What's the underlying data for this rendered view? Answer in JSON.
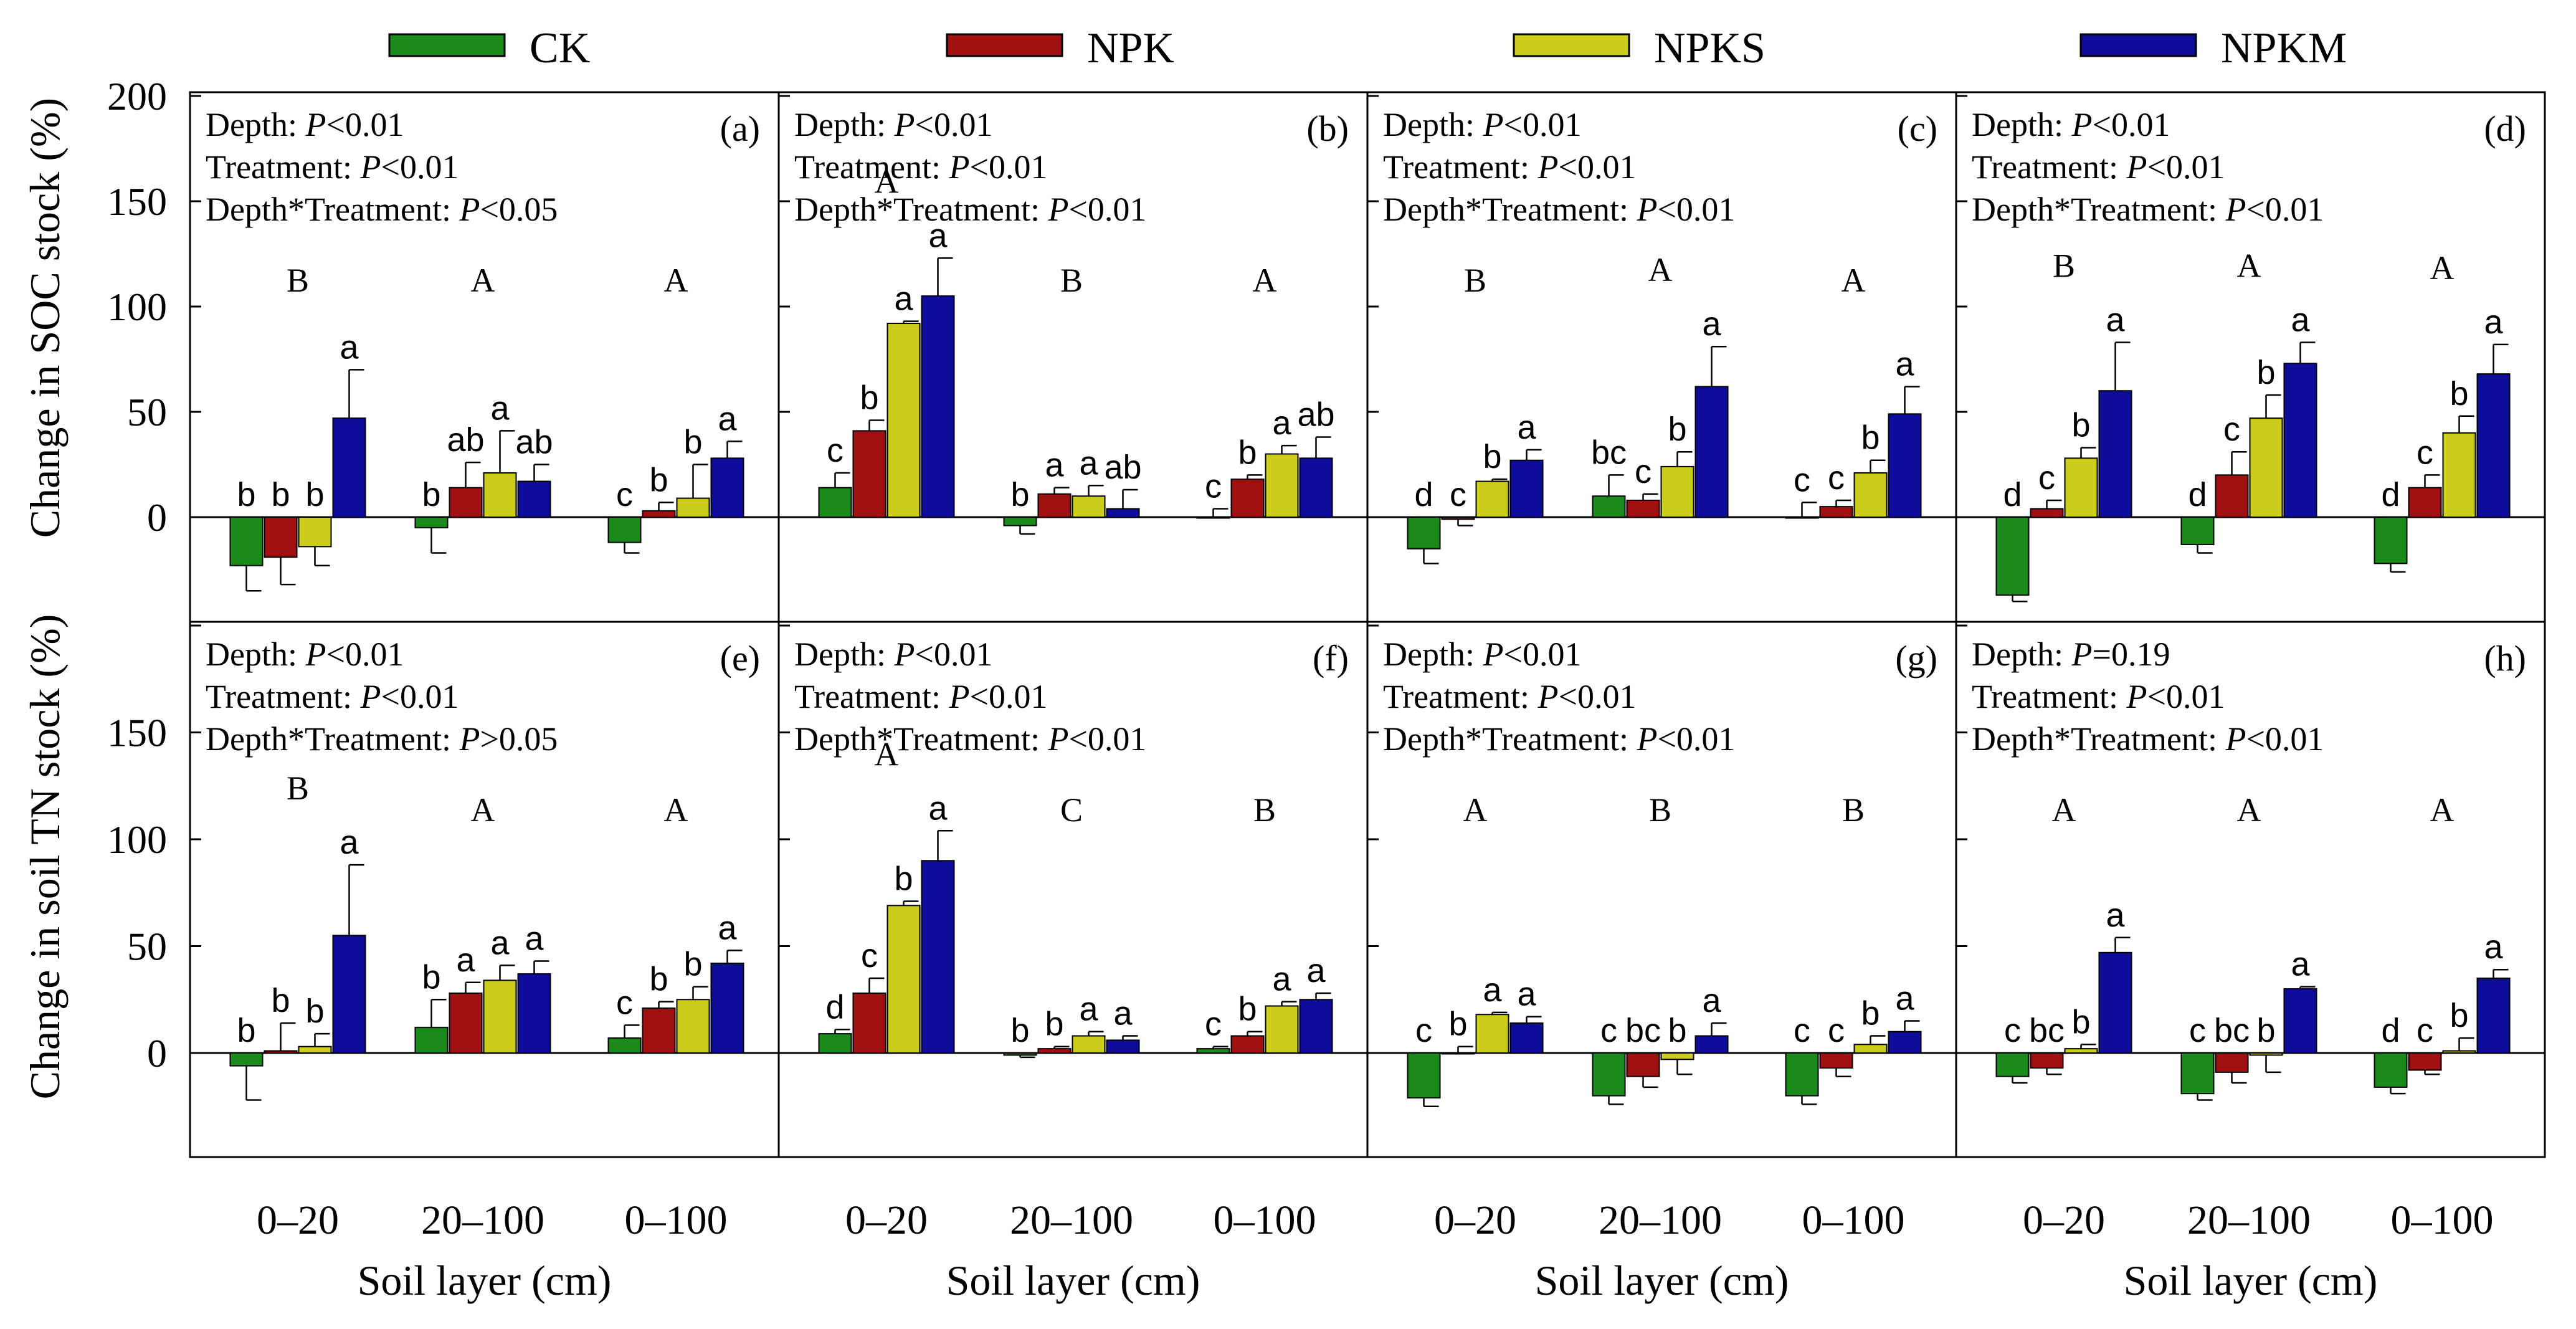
{
  "colors": {
    "CK": "#1a8a1a",
    "NPK": "#a01010",
    "NPKS": "#cccc1a",
    "NPKM": "#0d0d99"
  },
  "legend": [
    "CK",
    "NPK",
    "NPKS",
    "NPKM"
  ],
  "axes": {
    "soc_ylabel": "Change in SOC stock (%)",
    "tn_ylabel": "Change in soil TN stock (%)",
    "xlabel": "Soil layer (cm)",
    "categories": [
      "0–20",
      "20–100",
      "0–100"
    ],
    "soc_yticks": [
      "0",
      "50",
      "100",
      "150",
      "200"
    ],
    "tn_yticks": [
      "0",
      "50",
      "100",
      "150"
    ]
  },
  "chart_data": [
    {
      "type": "bar",
      "panel": "(a)",
      "row": "SOC",
      "categories": [
        "0–20",
        "20–100",
        "0–100"
      ],
      "stats": [
        "Depth: P<0.01",
        "Treatment: P<0.01",
        "Depth*Treatment: P<0.05"
      ],
      "group_letters": [
        "B",
        "A",
        "A"
      ],
      "series": [
        {
          "name": "CK",
          "values": [
            -23,
            -5,
            -12
          ],
          "errors": [
            12,
            12,
            5
          ],
          "letters": [
            "b",
            "b",
            "c"
          ]
        },
        {
          "name": "NPK",
          "values": [
            -19,
            14,
            3
          ],
          "errors": [
            13,
            12,
            4
          ],
          "letters": [
            "b",
            "ab",
            "b"
          ]
        },
        {
          "name": "NPKS",
          "values": [
            -14,
            21,
            9
          ],
          "errors": [
            9,
            20,
            16
          ],
          "letters": [
            "b",
            "a",
            "b"
          ]
        },
        {
          "name": "NPKM",
          "values": [
            47,
            17,
            28
          ],
          "errors": [
            23,
            8,
            8
          ],
          "letters": [
            "a",
            "ab",
            "a"
          ]
        }
      ]
    },
    {
      "type": "bar",
      "panel": "(b)",
      "row": "SOC",
      "categories": [
        "0–20",
        "20–100",
        "0–100"
      ],
      "stats": [
        "Depth: P<0.01",
        "Treatment: P<0.01",
        "Depth*Treatment: P<0.01"
      ],
      "group_letters": [
        "A",
        "B",
        "A"
      ],
      "series": [
        {
          "name": "CK",
          "values": [
            14,
            -4,
            0
          ],
          "errors": [
            7,
            4,
            4
          ],
          "letters": [
            "c",
            "b",
            "c"
          ]
        },
        {
          "name": "NPK",
          "values": [
            41,
            11,
            18
          ],
          "errors": [
            5,
            3,
            2
          ],
          "letters": [
            "b",
            "a",
            "b"
          ]
        },
        {
          "name": "NPKS",
          "values": [
            92,
            10,
            30
          ],
          "errors": [
            1,
            5,
            4
          ],
          "letters": [
            "a",
            "a",
            "a"
          ]
        },
        {
          "name": "NPKM",
          "values": [
            105,
            4,
            28
          ],
          "errors": [
            18,
            9,
            10
          ],
          "letters": [
            "a",
            "ab",
            "ab"
          ]
        }
      ]
    },
    {
      "type": "bar",
      "panel": "(c)",
      "row": "SOC",
      "categories": [
        "0–20",
        "20–100",
        "0–100"
      ],
      "stats": [
        "Depth: P<0.01",
        "Treatment: P<0.01",
        "Depth*Treatment: P<0.01"
      ],
      "group_letters": [
        "B",
        "A",
        "A"
      ],
      "series": [
        {
          "name": "CK",
          "values": [
            -15,
            10,
            0
          ],
          "errors": [
            7,
            10,
            7
          ],
          "letters": [
            "d",
            "bc",
            "c"
          ]
        },
        {
          "name": "NPK",
          "values": [
            -1,
            8,
            5
          ],
          "errors": [
            3,
            3,
            3
          ],
          "letters": [
            "c",
            "c",
            "c"
          ]
        },
        {
          "name": "NPKS",
          "values": [
            17,
            24,
            21
          ],
          "errors": [
            1,
            7,
            6
          ],
          "letters": [
            "b",
            "b",
            "b"
          ]
        },
        {
          "name": "NPKM",
          "values": [
            27,
            62,
            49
          ],
          "errors": [
            5,
            19,
            13
          ],
          "letters": [
            "a",
            "a",
            "a"
          ]
        }
      ]
    },
    {
      "type": "bar",
      "panel": "(d)",
      "row": "SOC",
      "categories": [
        "0–20",
        "20–100",
        "0–100"
      ],
      "stats": [
        "Depth: P<0.01",
        "Treatment: P<0.01",
        "Depth*Treatment: P<0.01"
      ],
      "group_letters": [
        "B",
        "A",
        "A"
      ],
      "series": [
        {
          "name": "CK",
          "values": [
            -37,
            -13,
            -22
          ],
          "errors": [
            3,
            4,
            4
          ],
          "letters": [
            "d",
            "d",
            "d"
          ]
        },
        {
          "name": "NPK",
          "values": [
            4,
            20,
            14
          ],
          "errors": [
            4,
            11,
            6
          ],
          "letters": [
            "c",
            "c",
            "c"
          ]
        },
        {
          "name": "NPKS",
          "values": [
            28,
            47,
            40
          ],
          "errors": [
            5,
            11,
            8
          ],
          "letters": [
            "b",
            "b",
            "b"
          ]
        },
        {
          "name": "NPKM",
          "values": [
            60,
            73,
            68
          ],
          "errors": [
            23,
            10,
            14
          ],
          "letters": [
            "a",
            "a",
            "a"
          ]
        }
      ]
    },
    {
      "type": "bar",
      "panel": "(e)",
      "row": "TN",
      "categories": [
        "0–20",
        "20–100",
        "0–100"
      ],
      "stats": [
        "Depth: P<0.01",
        "Treatment: P<0.01",
        "Depth*Treatment: P>0.05"
      ],
      "group_letters": [
        "B",
        "A",
        "A"
      ],
      "series": [
        {
          "name": "CK",
          "values": [
            -6,
            12,
            7
          ],
          "errors": [
            16,
            13,
            6
          ],
          "letters": [
            "b",
            "b",
            "c"
          ]
        },
        {
          "name": "NPK",
          "values": [
            1,
            28,
            21
          ],
          "errors": [
            13,
            5,
            3
          ],
          "letters": [
            "b",
            "a",
            "b"
          ]
        },
        {
          "name": "NPKS",
          "values": [
            3,
            34,
            25
          ],
          "errors": [
            6,
            7,
            6
          ],
          "letters": [
            "b",
            "a",
            "b"
          ]
        },
        {
          "name": "NPKM",
          "values": [
            55,
            37,
            42
          ],
          "errors": [
            33,
            6,
            6
          ],
          "letters": [
            "a",
            "a",
            "a"
          ]
        }
      ]
    },
    {
      "type": "bar",
      "panel": "(f)",
      "row": "TN",
      "categories": [
        "0–20",
        "20–100",
        "0–100"
      ],
      "stats": [
        "Depth: P<0.01",
        "Treatment: P<0.01",
        "Depth*Treatment: P<0.01"
      ],
      "group_letters": [
        "A",
        "C",
        "B"
      ],
      "series": [
        {
          "name": "CK",
          "values": [
            9,
            -1,
            2
          ],
          "errors": [
            2,
            1,
            1
          ],
          "letters": [
            "d",
            "b",
            "c"
          ]
        },
        {
          "name": "NPK",
          "values": [
            28,
            2,
            8
          ],
          "errors": [
            7,
            1,
            2
          ],
          "letters": [
            "c",
            "b",
            "b"
          ]
        },
        {
          "name": "NPKS",
          "values": [
            69,
            8,
            22
          ],
          "errors": [
            2,
            2,
            2
          ],
          "letters": [
            "b",
            "a",
            "a"
          ]
        },
        {
          "name": "NPKM",
          "values": [
            90,
            6,
            25
          ],
          "errors": [
            14,
            2,
            3
          ],
          "letters": [
            "a",
            "a",
            "a"
          ]
        }
      ]
    },
    {
      "type": "bar",
      "panel": "(g)",
      "row": "TN",
      "categories": [
        "0–20",
        "20–100",
        "0–100"
      ],
      "stats": [
        "Depth: P<0.01",
        "Treatment: P<0.01",
        "Depth*Treatment: P<0.01"
      ],
      "group_letters": [
        "A",
        "B",
        "B"
      ],
      "series": [
        {
          "name": "CK",
          "values": [
            -21,
            -20,
            -20
          ],
          "errors": [
            4,
            4,
            4
          ],
          "letters": [
            "c",
            "c",
            "c"
          ]
        },
        {
          "name": "NPK",
          "values": [
            0,
            -11,
            -7
          ],
          "errors": [
            3,
            5,
            4
          ],
          "letters": [
            "b",
            "bc",
            "c"
          ]
        },
        {
          "name": "NPKS",
          "values": [
            18,
            -3,
            4
          ],
          "errors": [
            1,
            7,
            4
          ],
          "letters": [
            "a",
            "b",
            "b"
          ]
        },
        {
          "name": "NPKM",
          "values": [
            14,
            8,
            10
          ],
          "errors": [
            3,
            6,
            5
          ],
          "letters": [
            "a",
            "a",
            "a"
          ]
        }
      ]
    },
    {
      "type": "bar",
      "panel": "(h)",
      "row": "TN",
      "categories": [
        "0–20",
        "20–100",
        "0–100"
      ],
      "stats": [
        "Depth: P=0.19",
        "Treatment: P<0.01",
        "Depth*Treatment: P<0.01"
      ],
      "group_letters": [
        "A",
        "A",
        "A"
      ],
      "series": [
        {
          "name": "CK",
          "values": [
            -11,
            -19,
            -16
          ],
          "errors": [
            3,
            3,
            3
          ],
          "letters": [
            "c",
            "c",
            "d"
          ]
        },
        {
          "name": "NPK",
          "values": [
            -7,
            -9,
            -8
          ],
          "errors": [
            3,
            5,
            2
          ],
          "letters": [
            "bc",
            "bc",
            "c"
          ]
        },
        {
          "name": "NPKS",
          "values": [
            2,
            -1,
            1
          ],
          "errors": [
            2,
            8,
            6
          ],
          "letters": [
            "b",
            "b",
            "b"
          ]
        },
        {
          "name": "NPKM",
          "values": [
            47,
            30,
            35
          ],
          "errors": [
            7,
            1,
            4
          ],
          "letters": [
            "a",
            "a",
            "a"
          ]
        }
      ]
    }
  ]
}
